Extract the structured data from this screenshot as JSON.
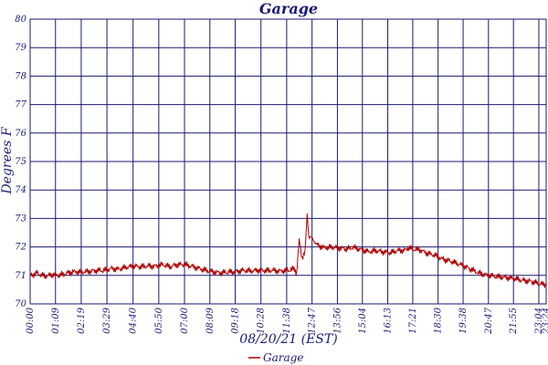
{
  "chart_data": {
    "type": "line",
    "title": "Garage",
    "xlabel": "08/20/21 (EST)",
    "ylabel": "Degrees F",
    "ylim": [
      70,
      80
    ],
    "yticks": [
      70,
      71,
      72,
      73,
      74,
      75,
      76,
      77,
      78,
      79,
      80
    ],
    "xlim": [
      "00:00",
      "23:24"
    ],
    "xticks": [
      "00:00",
      "01:09",
      "02:19",
      "03:29",
      "04:40",
      "05:50",
      "07:00",
      "08:09",
      "09:18",
      "10:28",
      "11:38",
      "12:47",
      "13:56",
      "15:04",
      "16:13",
      "17:21",
      "18:30",
      "19:38",
      "20:47",
      "21:55",
      "23:04",
      "23:24"
    ],
    "grid": true,
    "legend": "bottom",
    "colors": {
      "series": "#b00000",
      "grid": "#1a1a6e",
      "text": "#1a1a7a"
    },
    "series": [
      {
        "name": "Garage",
        "points": [
          [
            "00:00",
            71.0
          ],
          [
            "00:20",
            71.1
          ],
          [
            "00:40",
            71.0
          ],
          [
            "01:00",
            71.05
          ],
          [
            "01:20",
            71.0
          ],
          [
            "01:40",
            71.05
          ],
          [
            "02:00",
            71.1
          ],
          [
            "02:20",
            71.1
          ],
          [
            "02:40",
            71.15
          ],
          [
            "03:00",
            71.2
          ],
          [
            "03:20",
            71.2
          ],
          [
            "03:40",
            71.25
          ],
          [
            "04:00",
            71.2
          ],
          [
            "04:20",
            71.25
          ],
          [
            "04:40",
            71.3
          ],
          [
            "05:00",
            71.3
          ],
          [
            "05:20",
            71.35
          ],
          [
            "05:40",
            71.35
          ],
          [
            "06:00",
            71.4
          ],
          [
            "06:20",
            71.3
          ],
          [
            "06:40",
            71.35
          ],
          [
            "07:00",
            71.35
          ],
          [
            "07:20",
            71.3
          ],
          [
            "07:40",
            71.25
          ],
          [
            "08:00",
            71.2
          ],
          [
            "08:20",
            71.15
          ],
          [
            "08:40",
            71.1
          ],
          [
            "09:00",
            71.1
          ],
          [
            "09:20",
            71.1
          ],
          [
            "09:40",
            71.15
          ],
          [
            "10:00",
            71.15
          ],
          [
            "10:20",
            71.2
          ],
          [
            "10:40",
            71.2
          ],
          [
            "11:00",
            71.2
          ],
          [
            "11:20",
            71.15
          ],
          [
            "11:40",
            71.15
          ],
          [
            "12:00",
            71.2
          ],
          [
            "12:05",
            71.1
          ],
          [
            "12:12",
            72.2
          ],
          [
            "12:20",
            71.6
          ],
          [
            "12:28",
            71.8
          ],
          [
            "12:34",
            73.2
          ],
          [
            "12:38",
            72.4
          ],
          [
            "12:45",
            72.3
          ],
          [
            "13:00",
            72.1
          ],
          [
            "13:20",
            72.0
          ],
          [
            "13:40",
            72.0
          ],
          [
            "14:00",
            71.95
          ],
          [
            "14:20",
            71.9
          ],
          [
            "14:40",
            71.95
          ],
          [
            "15:00",
            71.9
          ],
          [
            "15:20",
            71.85
          ],
          [
            "15:40",
            71.9
          ],
          [
            "16:00",
            71.85
          ],
          [
            "16:20",
            71.8
          ],
          [
            "16:40",
            71.85
          ],
          [
            "17:00",
            71.85
          ],
          [
            "17:10",
            71.95
          ],
          [
            "17:20",
            71.9
          ],
          [
            "17:40",
            71.9
          ],
          [
            "18:00",
            71.8
          ],
          [
            "18:20",
            71.75
          ],
          [
            "18:40",
            71.6
          ],
          [
            "19:00",
            71.5
          ],
          [
            "19:20",
            71.4
          ],
          [
            "19:40",
            71.3
          ],
          [
            "20:00",
            71.2
          ],
          [
            "20:20",
            71.1
          ],
          [
            "20:40",
            71.05
          ],
          [
            "21:00",
            71.0
          ],
          [
            "21:20",
            70.95
          ],
          [
            "21:40",
            70.9
          ],
          [
            "22:00",
            70.85
          ],
          [
            "22:20",
            70.8
          ],
          [
            "22:40",
            70.8
          ],
          [
            "23:00",
            70.75
          ],
          [
            "23:24",
            70.7
          ]
        ]
      }
    ]
  }
}
